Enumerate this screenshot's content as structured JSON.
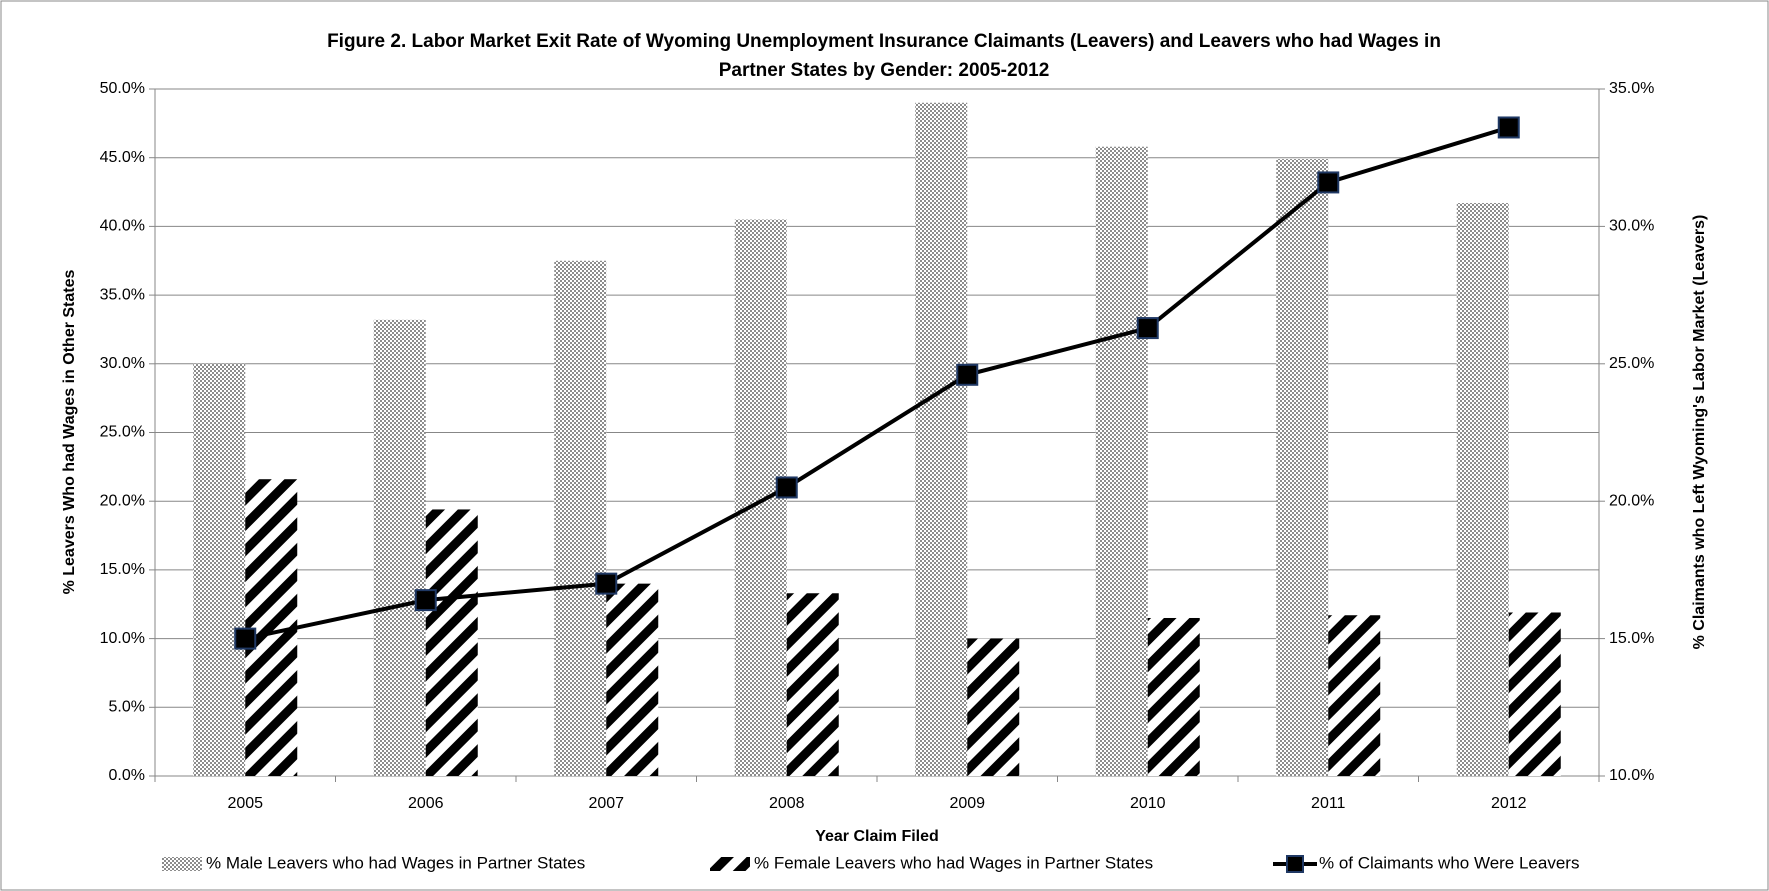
{
  "chart_data": {
    "type": "bar_line",
    "title": [
      "Figure 2. Labor Market Exit Rate of Wyoming Unemployment Insurance Claimants (Leavers) and Leavers who had Wages in",
      "Partner States by Gender: 2005-2012"
    ],
    "x_label": "Year Claim Filed",
    "y_label": "% Leavers Who had Wages in Other States",
    "y2_label": "% Claimants who Left Wyoming's Labor Market (Leavers)",
    "categories": [
      "2005",
      "2006",
      "2007",
      "2008",
      "2009",
      "2010",
      "2011",
      "2012"
    ],
    "series": [
      {
        "name": "% Male Leavers who had Wages in Partner States",
        "type": "bar",
        "pattern": "dots",
        "color": "#8c8c8c",
        "values": [
          30.0,
          33.2,
          37.5,
          40.5,
          49.0,
          45.8,
          44.9,
          41.7
        ]
      },
      {
        "name": "% Female Leavers who had Wages in Partner States",
        "type": "bar",
        "pattern": "stripes",
        "color": "#000000",
        "values": [
          21.6,
          19.4,
          14.0,
          13.3,
          10.0,
          11.5,
          11.7,
          11.9
        ]
      },
      {
        "name": "% of Claimants who Were Leavers",
        "type": "line",
        "axis": "y2",
        "color": "#000000",
        "marker_color": "#1f3864",
        "values": [
          15.0,
          16.4,
          17.0,
          20.5,
          24.6,
          26.3,
          31.6,
          33.6
        ]
      }
    ],
    "ylim": [
      0,
      50
    ],
    "yticks": [
      {
        "value": 0,
        "label": "0.0%"
      },
      {
        "value": 5,
        "label": "5.0%"
      },
      {
        "value": 10,
        "label": "10.0%"
      },
      {
        "value": 15,
        "label": "15.0%"
      },
      {
        "value": 20,
        "label": "20.0%"
      },
      {
        "value": 25,
        "label": "25.0%"
      },
      {
        "value": 30,
        "label": "30.0%"
      },
      {
        "value": 35,
        "label": "35.0%"
      },
      {
        "value": 40,
        "label": "40.0%"
      },
      {
        "value": 45,
        "label": "45.0%"
      },
      {
        "value": 50,
        "label": "50.0%"
      }
    ],
    "y2lim": [
      10,
      35
    ],
    "y2ticks": [
      {
        "value": 10,
        "label": "10.0%"
      },
      {
        "value": 15,
        "label": "15.0%"
      },
      {
        "value": 20,
        "label": "20.0%"
      },
      {
        "value": 25,
        "label": "25.0%"
      },
      {
        "value": 30,
        "label": "30.0%"
      },
      {
        "value": 35,
        "label": "35.0%"
      }
    ],
    "grid": true,
    "legend": "bottom"
  }
}
